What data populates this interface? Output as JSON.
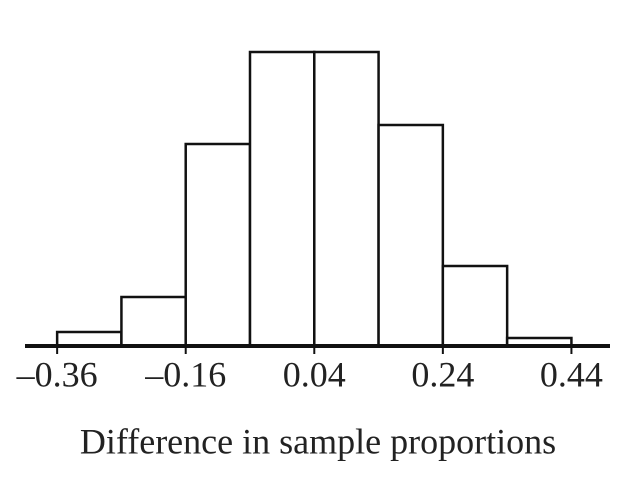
{
  "chart_data": {
    "type": "histogram",
    "xlabel": "Difference in sample proportions",
    "bins": [
      -0.36,
      -0.26,
      -0.16,
      -0.06,
      0.04,
      0.14,
      0.24,
      0.34,
      0.44
    ],
    "values": [
      14,
      49,
      202,
      294,
      294,
      221,
      80,
      8
    ],
    "color": "#ffffff",
    "xlim": [
      -0.41,
      0.5
    ],
    "ylim": [
      0,
      300
    ],
    "xticks": [
      {
        "value": -0.36,
        "label": "–0.36"
      },
      {
        "value": -0.16,
        "label": "–0.16"
      },
      0.04,
      0.24,
      0.44
    ],
    "grid": false
  }
}
